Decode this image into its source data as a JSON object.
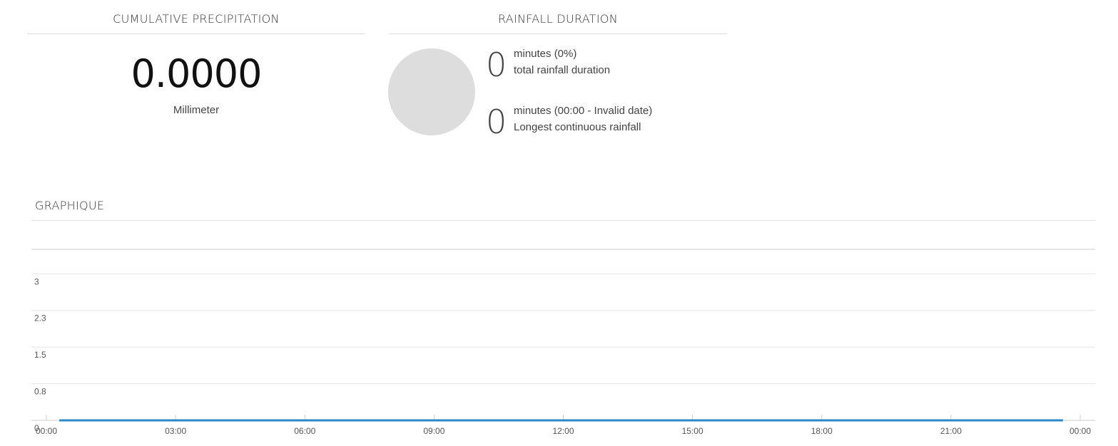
{
  "cumulative": {
    "title": "CUMULATIVE PRECIPITATION",
    "value": "0.0000",
    "unit": "Millimeter"
  },
  "duration": {
    "title": "RAINFALL DURATION",
    "total": {
      "value": "0",
      "line1": "minutes (0%)",
      "line2": "total rainfall duration"
    },
    "longest": {
      "value": "0",
      "line1": "minutes (00:00 - Invalid date)",
      "line2": "Longest continuous rainfall"
    },
    "circle_color": "#dddddd"
  },
  "graph": {
    "title": "GRAPHIQUE"
  },
  "chart_data": {
    "type": "line",
    "title": "",
    "xlabel": "",
    "ylabel": "",
    "x_tick_labels": [
      "00:00",
      "03:00",
      "06:00",
      "09:00",
      "12:00",
      "15:00",
      "18:00",
      "21:00",
      "00:00"
    ],
    "y_tick_labels": [
      "0",
      "0.8",
      "1.5",
      "2.3",
      "3"
    ],
    "y_ticks": [
      0,
      0.75,
      1.5,
      2.25,
      3
    ],
    "ylim": [
      0,
      3.5
    ],
    "xlim_hours": [
      0,
      24
    ],
    "grid": true,
    "series": [
      {
        "x": [
          0.3,
          23.6
        ],
        "values": [
          0,
          0
        ],
        "color": "#2a8ac9"
      }
    ]
  }
}
